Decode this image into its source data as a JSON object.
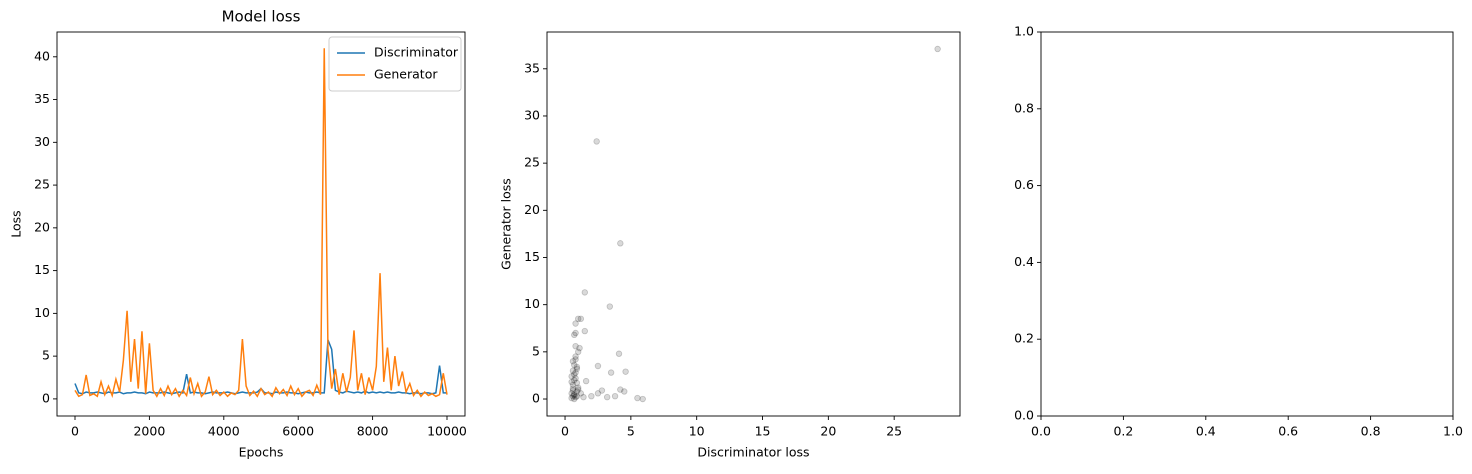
{
  "chart_data": [
    {
      "type": "line",
      "title": "Model loss",
      "x_label": "Epochs",
      "y_label": "Loss",
      "x": [
        0,
        100,
        200,
        300,
        400,
        500,
        600,
        700,
        800,
        900,
        1000,
        1100,
        1200,
        1300,
        1400,
        1500,
        1600,
        1700,
        1800,
        1900,
        2000,
        2100,
        2200,
        2300,
        2400,
        2500,
        2600,
        2700,
        2800,
        2900,
        3000,
        3100,
        3200,
        3300,
        3400,
        3500,
        3600,
        3700,
        3800,
        3900,
        4000,
        4100,
        4200,
        4300,
        4400,
        4500,
        4600,
        4700,
        4800,
        4900,
        5000,
        5100,
        5200,
        5300,
        5400,
        5500,
        5600,
        5700,
        5800,
        5900,
        6000,
        6100,
        6200,
        6300,
        6400,
        6500,
        6600,
        6700,
        6800,
        6900,
        7000,
        7100,
        7200,
        7300,
        7400,
        7500,
        7600,
        7700,
        7800,
        7900,
        8000,
        8100,
        8200,
        8300,
        8400,
        8500,
        8600,
        8700,
        8800,
        8900,
        9000,
        9100,
        9200,
        9300,
        9400,
        9500,
        9600,
        9700,
        9800,
        9900,
        10000
      ],
      "series": [
        {
          "name": "Discriminator",
          "color": "#1f77b4",
          "values": [
            1.8,
            0.7,
            0.6,
            0.8,
            0.7,
            0.7,
            0.8,
            0.7,
            0.6,
            0.8,
            0.7,
            0.7,
            0.8,
            0.6,
            0.7,
            0.7,
            0.8,
            0.7,
            0.7,
            0.6,
            0.8,
            0.7,
            0.7,
            0.7,
            0.8,
            0.7,
            0.6,
            0.7,
            0.8,
            0.7,
            2.9,
            0.7,
            0.8,
            0.7,
            0.7,
            0.6,
            0.7,
            0.8,
            0.7,
            0.7,
            0.7,
            0.8,
            0.7,
            0.6,
            0.7,
            0.8,
            0.7,
            0.7,
            0.7,
            0.8,
            1.2,
            0.7,
            0.7,
            0.6,
            0.8,
            0.7,
            0.7,
            0.8,
            0.7,
            0.7,
            0.6,
            0.7,
            0.8,
            0.7,
            0.7,
            0.8,
            0.7,
            0.7,
            6.9,
            5.8,
            1.0,
            0.8,
            0.7,
            0.9,
            0.8,
            0.7,
            0.8,
            0.7,
            0.9,
            0.7,
            0.8,
            0.7,
            0.8,
            0.7,
            0.8,
            0.7,
            0.7,
            0.8,
            0.7,
            0.7,
            0.6,
            0.7,
            0.7,
            0.6,
            0.7,
            0.7,
            0.6,
            0.7,
            3.9,
            0.7,
            0.7
          ]
        },
        {
          "name": "Generator",
          "color": "#ff7f0e",
          "values": [
            1.0,
            0.3,
            0.5,
            2.8,
            0.4,
            0.6,
            0.3,
            2.0,
            0.5,
            1.5,
            0.4,
            2.3,
            0.8,
            4.5,
            10.3,
            2.0,
            7.0,
            1.2,
            7.9,
            0.6,
            6.5,
            1.0,
            0.3,
            1.2,
            0.4,
            1.5,
            0.5,
            1.2,
            0.3,
            1.0,
            0.4,
            2.5,
            0.6,
            1.8,
            0.3,
            0.8,
            2.6,
            0.5,
            1.0,
            0.4,
            0.8,
            0.3,
            0.7,
            0.5,
            1.0,
            7.0,
            1.5,
            0.4,
            0.9,
            0.3,
            1.2,
            0.5,
            0.8,
            0.3,
            1.3,
            0.6,
            1.1,
            0.4,
            1.5,
            0.5,
            1.2,
            0.3,
            0.8,
            1.0,
            0.4,
            1.6,
            0.5,
            41.0,
            5.8,
            1.2,
            3.5,
            0.5,
            3.0,
            0.8,
            2.5,
            8.0,
            1.0,
            3.0,
            0.5,
            2.5,
            1.0,
            3.8,
            14.7,
            2.0,
            6.0,
            1.0,
            5.0,
            1.5,
            3.2,
            0.8,
            1.8,
            0.4,
            1.0,
            0.3,
            0.8,
            0.4,
            0.6,
            0.3,
            0.5,
            3.0,
            0.5
          ]
        }
      ],
      "xlim": [
        -484,
        10484
      ],
      "ylim": [
        -2.0,
        42.9
      ],
      "xticks": [
        0,
        2000,
        4000,
        6000,
        8000,
        10000
      ],
      "yticks": [
        0,
        5,
        10,
        15,
        20,
        25,
        30,
        35,
        40
      ],
      "legend": "upper right"
    },
    {
      "type": "scatter",
      "x_label": "Discriminator loss",
      "y_label": "Generator loss",
      "color": "#000000",
      "x": [
        28.3,
        2.4,
        4.2,
        1.5,
        3.4,
        1.0,
        1.2,
        0.8,
        0.8,
        1.5,
        2.5,
        4.1,
        3.5,
        4.6,
        5.5,
        5.9,
        4.5,
        3.8,
        3.2,
        2.8,
        2.0,
        1.6,
        2.5,
        4.2,
        0.5,
        0.6,
        0.7,
        0.8,
        0.9,
        1.0,
        0.6,
        0.7,
        0.5,
        0.8,
        0.9,
        0.7,
        0.6,
        0.8,
        1.0,
        1.1,
        0.7,
        0.5,
        0.6,
        0.9,
        0.8,
        0.7,
        0.6,
        0.9,
        1.0,
        0.8,
        0.7,
        0.6,
        0.5,
        1.2,
        1.4,
        0.9,
        0.7,
        0.8
      ],
      "y": [
        37.1,
        27.3,
        16.5,
        11.3,
        9.8,
        8.5,
        8.5,
        8.0,
        7.0,
        7.2,
        3.5,
        4.8,
        2.8,
        2.9,
        0.1,
        0.0,
        0.8,
        0.3,
        0.2,
        0.9,
        0.3,
        1.9,
        0.6,
        1.0,
        0.1,
        0.3,
        0.5,
        0.2,
        0.8,
        1.2,
        1.5,
        2.0,
        2.4,
        2.8,
        3.2,
        3.6,
        4.0,
        4.5,
        5.0,
        5.4,
        0.0,
        0.6,
        0.9,
        1.7,
        2.2,
        2.6,
        3.0,
        3.4,
        1.0,
        4.2,
        0.4,
        1.1,
        1.8,
        0.6,
        0.2,
        0.3,
        6.8,
        5.6
      ],
      "xlim": [
        -1.37,
        30.0
      ],
      "ylim": [
        -1.8,
        38.9
      ],
      "xticks": [
        0,
        5,
        10,
        15,
        20,
        25
      ],
      "yticks": [
        0,
        5,
        10,
        15,
        20,
        25,
        30,
        35
      ]
    },
    {
      "type": "line",
      "xlim": [
        0,
        1
      ],
      "ylim": [
        0,
        1
      ],
      "xticks": [
        {
          "value": 0,
          "label": "0.0"
        },
        {
          "value": 0.2,
          "label": "0.2"
        },
        {
          "value": 0.4,
          "label": "0.4"
        },
        {
          "value": 0.6,
          "label": "0.6"
        },
        {
          "value": 0.8,
          "label": "0.8"
        },
        {
          "value": 1,
          "label": "1.0"
        }
      ],
      "yticks": [
        {
          "value": 0,
          "label": "0.0"
        },
        {
          "value": 0.2,
          "label": "0.2"
        },
        {
          "value": 0.4,
          "label": "0.4"
        },
        {
          "value": 0.6,
          "label": "0.6"
        },
        {
          "value": 0.8,
          "label": "0.8"
        },
        {
          "value": 1,
          "label": "1.0"
        }
      ]
    }
  ]
}
